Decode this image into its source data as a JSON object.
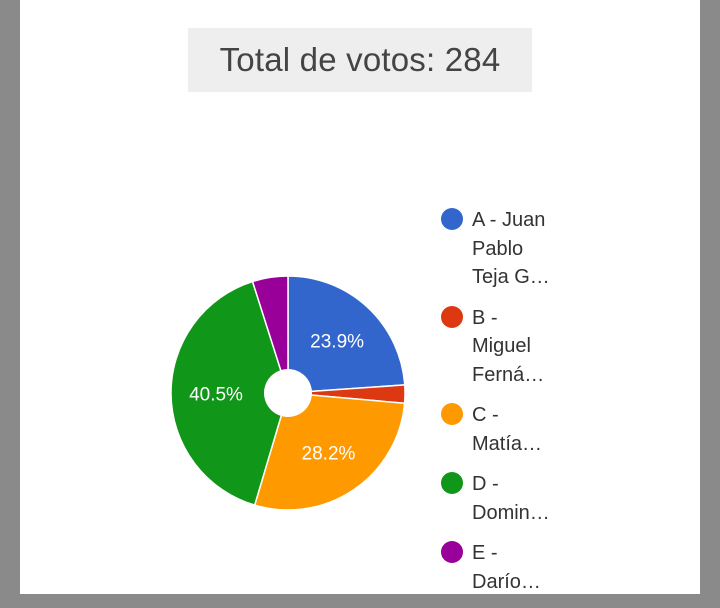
{
  "title": "Total de votos: 284",
  "chart_data": {
    "type": "pie",
    "donut": true,
    "categories": [
      "A - Juan Pablo Teja G…",
      "B - Miguel Ferná…",
      "C - Matía…",
      "D - Domin…",
      "E - Darío…"
    ],
    "legend_lines": [
      "A - Juan\nPablo\nTeja G…",
      "B -\nMiguel\nFerná…",
      "C -\nMatía…",
      "D -\nDomin…",
      "E -\nDarío…"
    ],
    "values": [
      23.9,
      2.5,
      28.2,
      40.5,
      4.9
    ],
    "labels": [
      "23.9%",
      "",
      "28.2%",
      "40.5%",
      ""
    ],
    "colors": [
      "#3366cc",
      "#dc3912",
      "#ff9900",
      "#109618",
      "#990099"
    ],
    "legend_position": "right"
  }
}
